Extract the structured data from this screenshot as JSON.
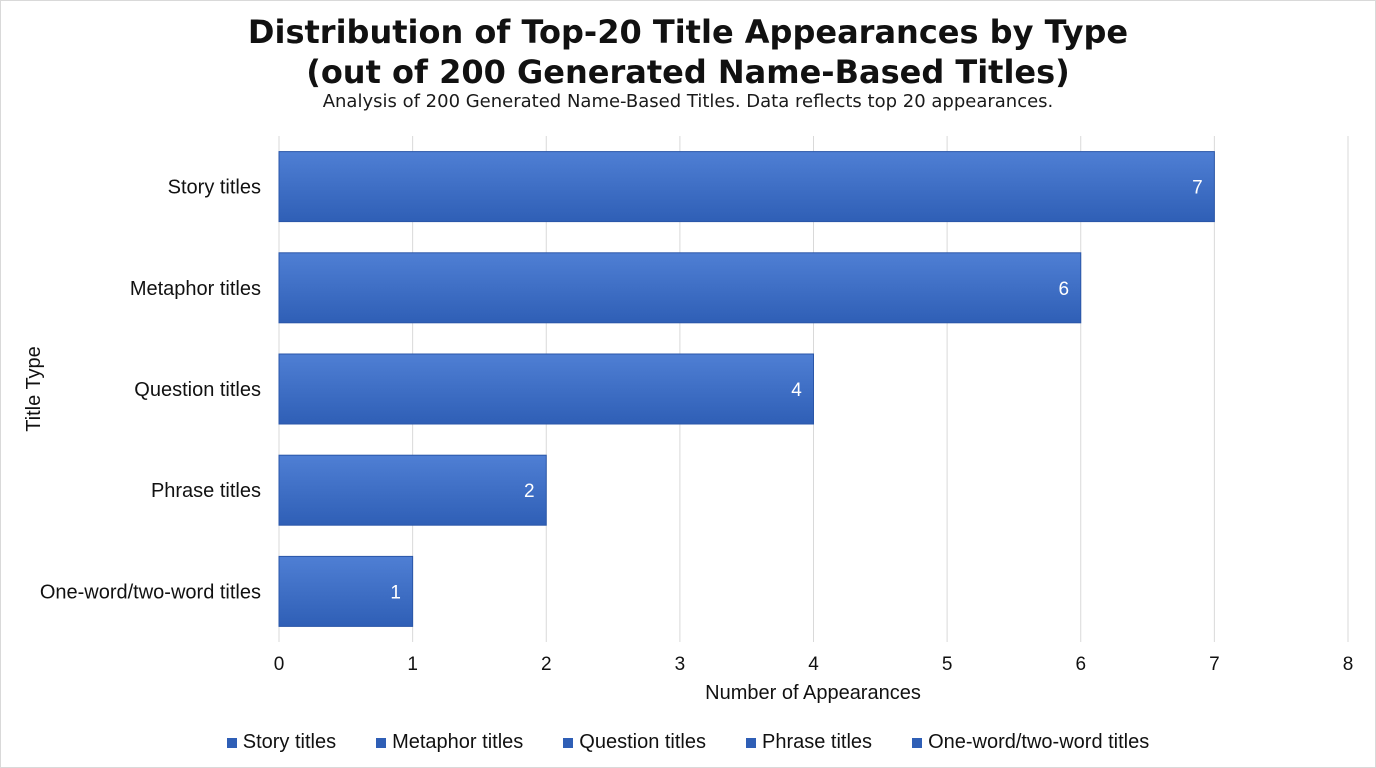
{
  "chart_data": {
    "type": "bar",
    "orientation": "horizontal",
    "title_lines": [
      "Distribution of Top-20 Title Appearances by Type",
      "(out of 200 Generated Name-Based Titles)"
    ],
    "subtitle": "Analysis of 200 Generated Name-Based Titles. Data reflects top 20 appearances.",
    "categories": [
      "Story titles",
      "Metaphor titles",
      "Question titles",
      "Phrase titles",
      "One-word/two-word titles"
    ],
    "values": [
      7,
      6,
      4,
      2,
      1
    ],
    "data_labels": [
      "7",
      "6",
      "4",
      "2",
      "1"
    ],
    "xlabel": "Number of Appearances",
    "ylabel": "Title Type",
    "xlim": [
      0,
      8
    ],
    "xticks": [
      "0",
      "1",
      "2",
      "3",
      "4",
      "5",
      "6",
      "7",
      "8"
    ],
    "grid": true,
    "legend": {
      "placement": "bottom",
      "entries": [
        "Story titles",
        "Metaphor titles",
        "Question titles",
        "Phrase titles",
        "One-word/two-word titles"
      ]
    },
    "colors": {
      "bar_top": "#4f7fd4",
      "bar_bottom": "#2f5fb6",
      "bar_edge": "#2a56a8",
      "grid": "#d9d9d9",
      "data_label": "#ffffff"
    }
  }
}
